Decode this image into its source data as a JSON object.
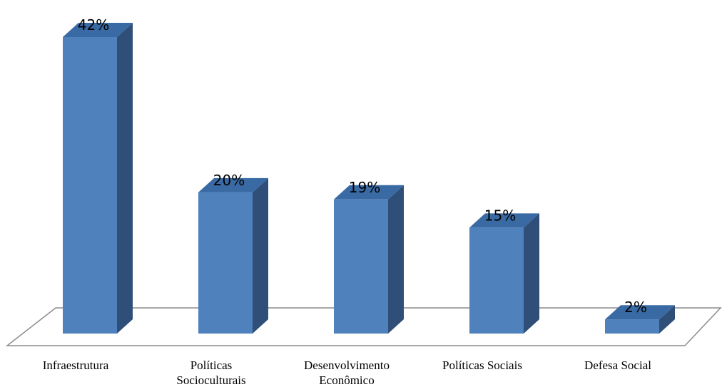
{
  "chart_data": {
    "type": "bar",
    "categories": [
      [
        "Infraestrutura"
      ],
      [
        "Políticas",
        "Socioculturais"
      ],
      [
        "Desenvolvimento",
        "Econômico"
      ],
      [
        "Políticas Sociais"
      ],
      [
        "Defesa Social"
      ]
    ],
    "values": [
      42,
      20,
      19,
      15,
      2
    ],
    "data_labels": [
      "42%",
      "20%",
      "19%",
      "15%",
      "2%"
    ],
    "value_unit": "%",
    "ylim": [
      0,
      42
    ],
    "style": "3d-column",
    "grid": false,
    "legend": "none",
    "colors": {
      "bar_front": "#4f81bd",
      "bar_side": "#2f4f79",
      "bar_top": "#3a6aa3",
      "floor_edge": "#8c8c8c"
    }
  }
}
